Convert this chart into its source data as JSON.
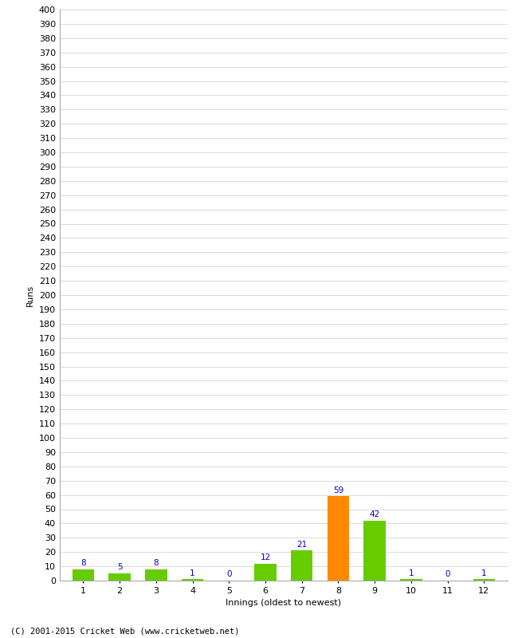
{
  "xlabel": "Innings (oldest to newest)",
  "ylabel": "Runs",
  "categories": [
    1,
    2,
    3,
    4,
    5,
    6,
    7,
    8,
    9,
    10,
    11,
    12
  ],
  "values": [
    8,
    5,
    8,
    1,
    0,
    12,
    21,
    59,
    42,
    1,
    0,
    1
  ],
  "bar_colors": [
    "#66cc00",
    "#66cc00",
    "#66cc00",
    "#66cc00",
    "#66cc00",
    "#66cc00",
    "#66cc00",
    "#ff8800",
    "#66cc00",
    "#66cc00",
    "#66cc00",
    "#66cc00"
  ],
  "label_color": "#0000cc",
  "ylim": [
    0,
    400
  ],
  "ytick_step": 10,
  "background_color": "#ffffff",
  "grid_color": "#cccccc",
  "footer": "(C) 2001-2015 Cricket Web (www.cricketweb.net)",
  "label_fontsize": 7.5,
  "axis_tick_fontsize": 8,
  "ylabel_fontsize": 8,
  "xlabel_fontsize": 8
}
